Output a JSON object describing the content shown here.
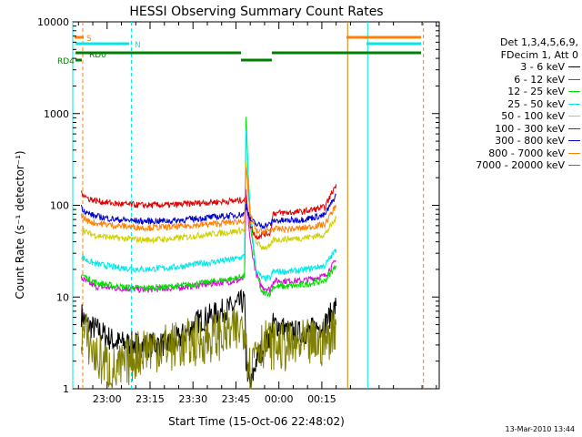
{
  "chart_data": {
    "type": "line",
    "title": "HESSI Observing Summary Count Rates",
    "xlabel": "Start Time (15-Oct-06 22:48:02)",
    "ylabel": "Count Rate (s⁻¹ detector⁻¹)",
    "yscale": "log",
    "ylim": [
      1,
      10000
    ],
    "xlim_minutes": [
      0,
      128
    ],
    "x_tick_labels": [
      "23:00",
      "23:15",
      "23:30",
      "23:45",
      "00:00",
      "00:15"
    ],
    "x_ticks_minutes": [
      12,
      27,
      42,
      57,
      72,
      87
    ],
    "y_tick_labels": [
      "1",
      "10",
      "100",
      "1000",
      "10000"
    ],
    "y_ticks": [
      1,
      10,
      100,
      1000,
      10000
    ],
    "legend_header": [
      "Det 1,3,4,5,6,9,",
      "FDecim 1, Att 0"
    ],
    "series": [
      {
        "name": "3 - 6 keV",
        "color": "#000000",
        "x": [
          3,
          5,
          8,
          15,
          25,
          35,
          44,
          57,
          60,
          60.5,
          62,
          64,
          69,
          70,
          72,
          75,
          80,
          88,
          92
        ],
        "y": [
          6.5,
          5.0,
          4.5,
          3.2,
          3.0,
          3.1,
          5.5,
          8.0,
          9.2,
          2.0,
          1.0,
          2.0,
          4.0,
          5.0,
          5.0,
          4.2,
          4.0,
          5.0,
          8.0
        ]
      },
      {
        "name": "6 - 12 keV",
        "color": "#e000e0",
        "x": [
          3,
          5,
          8,
          15,
          25,
          35,
          44,
          57,
          60,
          60.5,
          62,
          64,
          66,
          69,
          70,
          75,
          80,
          88,
          92
        ],
        "y": [
          16.0,
          14.5,
          13.0,
          12.5,
          12.0,
          12.5,
          13.5,
          15.0,
          16.0,
          140.0,
          40.0,
          18.0,
          13.0,
          12.0,
          15.0,
          15.0,
          15.0,
          17.0,
          25.0
        ]
      },
      {
        "name": "12 - 25 keV",
        "color": "#00e000",
        "x": [
          3,
          5,
          8,
          15,
          25,
          35,
          44,
          57,
          60,
          60.5,
          62,
          64,
          66,
          69,
          70,
          75,
          80,
          88,
          92
        ],
        "y": [
          18.0,
          16.0,
          14.5,
          13.0,
          12.5,
          13.0,
          14.0,
          16.0,
          17.0,
          900.0,
          60.0,
          20.0,
          11.0,
          11.0,
          13.0,
          13.0,
          13.5,
          15.0,
          22.0
        ]
      },
      {
        "name": "25 - 50 keV",
        "color": "#00e8e8",
        "x": [
          3,
          5,
          8,
          15,
          25,
          35,
          44,
          57,
          60,
          60.5,
          62,
          64,
          66,
          69,
          70,
          75,
          80,
          88,
          92
        ],
        "y": [
          28.0,
          25.0,
          23.0,
          21.0,
          20.0,
          21.0,
          23.0,
          26.0,
          28.0,
          700.0,
          80.0,
          20.0,
          16.0,
          16.0,
          19.0,
          19.0,
          19.5,
          22.0,
          33.0
        ]
      },
      {
        "name": "50 - 100 keV",
        "color": "#d0d000",
        "x": [
          3,
          5,
          8,
          15,
          25,
          35,
          44,
          57,
          60,
          60.5,
          62,
          64,
          66,
          69,
          70,
          75,
          80,
          88,
          92
        ],
        "y": [
          56.0,
          50.0,
          47.0,
          44.0,
          42.0,
          43.0,
          47.0,
          52.0,
          54.0,
          300.0,
          70.0,
          40.0,
          35.0,
          35.0,
          42.0,
          43.0,
          44.0,
          48.0,
          72.0
        ]
      },
      {
        "name": "100 - 300 keV",
        "color": "#e00000",
        "x": [
          3,
          5,
          8,
          15,
          25,
          35,
          44,
          57,
          60,
          60.5,
          62,
          64,
          66,
          69,
          70,
          75,
          80,
          88,
          92
        ],
        "y": [
          140.0,
          120.0,
          112.0,
          104.0,
          100.0,
          101.0,
          106.0,
          112.0,
          115.0,
          120.0,
          60.0,
          45.0,
          48.0,
          50.0,
          82.0,
          83.0,
          85.0,
          95.0,
          170.0
        ]
      },
      {
        "name": "300 - 800 keV",
        "color": "#0000d0",
        "x": [
          3,
          5,
          8,
          15,
          25,
          35,
          44,
          57,
          60,
          60.5,
          62,
          64,
          66,
          69,
          70,
          75,
          80,
          88,
          92
        ],
        "y": [
          95.0,
          82.0,
          76.0,
          70.0,
          67.0,
          68.0,
          72.0,
          78.0,
          80.0,
          100.0,
          70.0,
          62.0,
          60.0,
          62.0,
          68.0,
          68.0,
          70.0,
          78.0,
          130.0
        ]
      },
      {
        "name": "800 - 7000 keV",
        "color": "#ff8000",
        "x": [
          3,
          5,
          8,
          15,
          25,
          35,
          44,
          57,
          60,
          60.5,
          62,
          64,
          66,
          69,
          70,
          75,
          80,
          88,
          92
        ],
        "y": [
          78.0,
          68.0,
          64.0,
          60.0,
          57.0,
          58.0,
          61.0,
          66.0,
          68.0,
          260.0,
          80.0,
          52.0,
          52.0,
          53.0,
          55.0,
          55.0,
          56.0,
          62.0,
          100.0
        ]
      },
      {
        "name": "7000 - 20000 keV",
        "color": "#808000",
        "x": [
          3,
          5,
          8,
          15,
          25,
          35,
          44,
          57,
          60,
          62,
          64,
          70,
          75,
          80,
          88,
          92
        ],
        "y": [
          4.2,
          3.6,
          2.2,
          1.5,
          2.8,
          2.9,
          3.3,
          4.2,
          5.0,
          1.5,
          3.2,
          3.0,
          2.8,
          3.0,
          3.2,
          5.0
        ]
      }
    ],
    "flags": [
      {
        "label": "S",
        "color": "#ff8000"
      },
      {
        "label": "N",
        "color": "#00e8e8"
      },
      {
        "label": "RD0",
        "color": "#008000"
      },
      {
        "label": "RD4",
        "color": "#008000"
      }
    ]
  },
  "footer": {
    "date": "13-Mar-2010 13:44"
  }
}
